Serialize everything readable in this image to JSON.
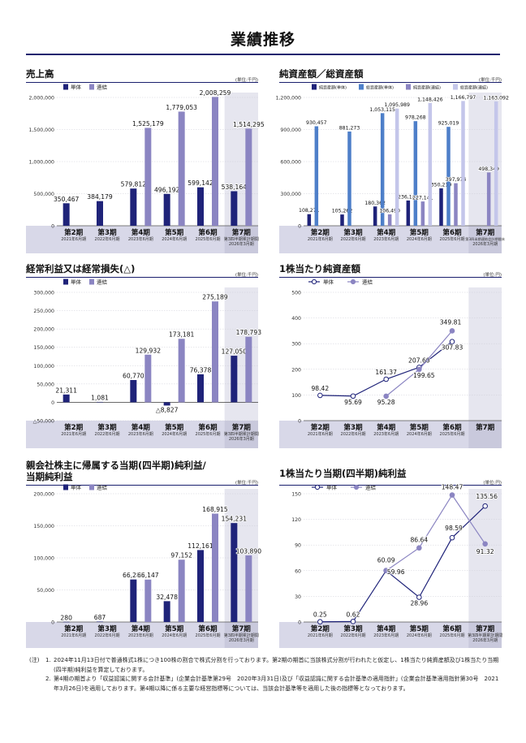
{
  "page": {
    "title": "業績推移"
  },
  "colors": {
    "single": "#1f2379",
    "consolidated": "#8b85c2",
    "consolidated_light": "#c4c6ea",
    "single_light": "#4e7fc9",
    "axis_band": "#d8d8e8",
    "forecast_band": "#e6e6ef"
  },
  "panels": [
    {
      "id": "sales",
      "title": "売上高",
      "unit": "(単位:千円)"
    },
    {
      "id": "net_assets",
      "title": "純資産額／総資産額",
      "unit": "(単位:千円)"
    },
    {
      "id": "ordinary_income",
      "title": "経常利益又は経常損失(△)",
      "unit": "(単位:千円)"
    },
    {
      "id": "bps",
      "title": "1株当たり純資産額",
      "unit": "(単位:円)"
    },
    {
      "id": "net_income",
      "title": "親会社株主に帰属する当期(四半期)純利益/\n当期純利益",
      "unit": "(単位:千円)"
    },
    {
      "id": "eps",
      "title": "1株当たり当期(四半期)純利益",
      "unit": "(単位:円)"
    }
  ],
  "chart_data": [
    {
      "id": "sales",
      "type": "bar",
      "categories": [
        "第2期",
        "第3期",
        "第4期",
        "第5期",
        "第6期",
        "第7期"
      ],
      "sublabels": [
        "2021年6月期",
        "2022年6月期",
        "2023年6月期",
        "2024年6月期",
        "2025年6月期",
        "第3四半期累計期間\n2026年3月期"
      ],
      "series": [
        {
          "name": "単体",
          "values": [
            350467,
            384179,
            579812,
            496192,
            599142,
            538164
          ],
          "labels": [
            "350,467",
            "384,179",
            "579,812",
            "496,192",
            "599,142",
            "538,164"
          ]
        },
        {
          "name": "連結",
          "values": [
            null,
            null,
            1525179,
            1779053,
            2008259,
            1514295
          ],
          "labels": [
            "",
            "",
            "1,525,179",
            "1,779,053",
            "2,008,259",
            "1,514,295"
          ]
        }
      ],
      "ylim": [
        0,
        2000000
      ],
      "yticks": [
        0,
        500000,
        1000000,
        1500000,
        2000000
      ],
      "ytick_labels": [
        "0",
        "500,000",
        "1,000,000",
        "1,500,000",
        "2,000,000"
      ],
      "legend_position": "top-left"
    },
    {
      "id": "net_assets",
      "type": "bar",
      "categories": [
        "第2期",
        "第3期",
        "第4期",
        "第5期",
        "第6期",
        "第7期"
      ],
      "sublabels": [
        "2021年6月期",
        "2022年6月期",
        "2023年6月期",
        "2024年6月期",
        "2025年6月期",
        "第3四半期連結会計期間末\n2026年3月期"
      ],
      "series": [
        {
          "name": "純資産額(単体)",
          "values": [
            108271,
            105262,
            180362,
            236188,
            350219,
            null
          ],
          "labels": [
            "108,271",
            "105,262",
            "180,362",
            "236,188",
            "350,219",
            ""
          ]
        },
        {
          "name": "総資産額(単体)",
          "values": [
            930457,
            881273,
            1053115,
            978268,
            925019,
            null
          ],
          "labels": [
            "930,457",
            "881,273",
            "1,053,115",
            "978,268",
            "925,019",
            ""
          ]
        },
        {
          "name": "純資産額(連結)",
          "values": [
            null,
            null,
            106490,
            227141,
            397974,
            498349
          ],
          "labels": [
            "",
            "",
            "106,490",
            "227,141",
            "397,974",
            "498,349"
          ]
        },
        {
          "name": "総資産額(連結)",
          "values": [
            null,
            null,
            1095989,
            1148426,
            1166797,
            1163092
          ],
          "labels": [
            "",
            "",
            "1,095,989",
            "1,148,426",
            "1,166,797",
            "1,163,092"
          ]
        }
      ],
      "ylim": [
        0,
        1200000
      ],
      "yticks": [
        0,
        300000,
        600000,
        900000,
        1200000
      ],
      "ytick_labels": [
        "0",
        "300,000",
        "600,000",
        "900,000",
        "1,200,000"
      ],
      "legend_position": "top"
    },
    {
      "id": "ordinary_income",
      "type": "bar",
      "categories": [
        "第2期",
        "第3期",
        "第4期",
        "第5期",
        "第6期",
        "第7期"
      ],
      "sublabels": [
        "2021年6月期",
        "2022年6月期",
        "2023年6月期",
        "2024年6月期",
        "2025年6月期",
        "第3四半期累計期間\n2026年3月期"
      ],
      "series": [
        {
          "name": "単体",
          "values": [
            21311,
            1081,
            60770,
            -8827,
            76378,
            127050
          ],
          "labels": [
            "21,311",
            "1,081",
            "60,770",
            "△8,827",
            "76,378",
            "127,050"
          ]
        },
        {
          "name": "連結",
          "values": [
            null,
            null,
            129932,
            173181,
            275189,
            178793
          ],
          "labels": [
            "",
            "",
            "129,932",
            "173,181",
            "275,189",
            "178,793"
          ]
        }
      ],
      "ylim": [
        -50000,
        300000
      ],
      "yticks": [
        -50000,
        0,
        50000,
        100000,
        150000,
        200000,
        250000,
        300000
      ],
      "ytick_labels": [
        "△50,000",
        "0",
        "50,000",
        "100,000",
        "150,000",
        "200,000",
        "250,000",
        "300,000"
      ],
      "legend_position": "top-left"
    },
    {
      "id": "bps",
      "type": "line",
      "categories": [
        "第2期",
        "第3期",
        "第4期",
        "第5期",
        "第6期",
        "第7期"
      ],
      "sublabels": [
        "2021年6月期",
        "2022年6月期",
        "2023年6月期",
        "2024年6月期",
        "2025年6月期",
        ""
      ],
      "series": [
        {
          "name": "単体",
          "values": [
            98.42,
            95.69,
            161.37,
            207.6,
            307.83,
            null
          ],
          "labels": [
            "98.42",
            "95.69",
            "161.37",
            "207.60",
            "307.83",
            ""
          ]
        },
        {
          "name": "連結",
          "values": [
            null,
            null,
            95.28,
            199.65,
            349.81,
            null
          ],
          "labels": [
            "",
            "",
            "95.28",
            "199.65",
            "349.81",
            ""
          ]
        }
      ],
      "ylim": [
        0,
        500
      ],
      "yticks": [
        0,
        100,
        200,
        300,
        400,
        500
      ],
      "ytick_labels": [
        "0",
        "100",
        "200",
        "300",
        "400",
        "500"
      ],
      "legend_position": "top-left"
    },
    {
      "id": "net_income",
      "type": "bar",
      "categories": [
        "第2期",
        "第3期",
        "第4期",
        "第5期",
        "第6期",
        "第7期"
      ],
      "sublabels": [
        "2021年6月期",
        "2022年6月期",
        "2023年6月期",
        "2024年6月期",
        "2025年6月期",
        "第3四半期累計期間\n2026年3月期"
      ],
      "series": [
        {
          "name": "単体",
          "values": [
            280,
            687,
            66289,
            32478,
            112161,
            154231
          ],
          "labels": [
            "280",
            "687",
            "66,289",
            "32,478",
            "112,161",
            "154,231"
          ]
        },
        {
          "name": "連結",
          "values": [
            null,
            null,
            66147,
            97152,
            168915,
            103890
          ],
          "labels": [
            "",
            "",
            "66,147",
            "97,152",
            "168,915",
            "103,890"
          ]
        }
      ],
      "ylim": [
        0,
        200000
      ],
      "yticks": [
        0,
        50000,
        100000,
        150000,
        200000
      ],
      "ytick_labels": [
        "0",
        "50,000",
        "100,000",
        "150,000",
        "200,000"
      ],
      "legend_position": "top-left"
    },
    {
      "id": "eps",
      "type": "line",
      "categories": [
        "第2期",
        "第3期",
        "第4期",
        "第5期",
        "第6期",
        "第7期"
      ],
      "sublabels": [
        "2021年6月期",
        "2022年6月期",
        "2023年6月期",
        "2024年6月期",
        "2025年6月期",
        "第3四半期累計期間\n2026年3月期"
      ],
      "series": [
        {
          "name": "単体",
          "values": [
            0.25,
            0.62,
            60.09,
            28.96,
            98.59,
            135.56
          ],
          "labels": [
            "0.25",
            "0.62",
            "60.09",
            "28.96",
            "98.59",
            "135.56"
          ]
        },
        {
          "name": "連結",
          "values": [
            null,
            null,
            59.96,
            86.64,
            148.47,
            91.32
          ],
          "labels": [
            "",
            "",
            "59.96",
            "86.64",
            "148.47",
            "91.32"
          ]
        }
      ],
      "ylim": [
        0,
        150
      ],
      "yticks": [
        0,
        30,
        60,
        90,
        120,
        150
      ],
      "ytick_labels": [
        "0",
        "30",
        "60",
        "90",
        "120",
        "150"
      ],
      "legend_position": "top-left"
    }
  ],
  "notes": {
    "head": "(注)",
    "items": [
      {
        "num": "1.",
        "text": "2024年11月13日付で普通株式1株につき100株の割合で株式分割を行っております。第2期の期首に当該株式分割が行われたと仮定し、1株当たり純資産額及び1株当たり当期(四半期)純利益を算定しております。"
      },
      {
        "num": "2.",
        "text": "第4期の期首より「収益認識に関する会計基準」(企業会計基準第29号　2020年3月31日)及び「収益認識に関する会計基準の適用指針」(企業会計基準適用指針第30号　2021年3月26日)を適用しております。第4期以降に係る主要な経営指標等については、当該会計基準等を適用した後の指標等となっております。"
      }
    ]
  }
}
